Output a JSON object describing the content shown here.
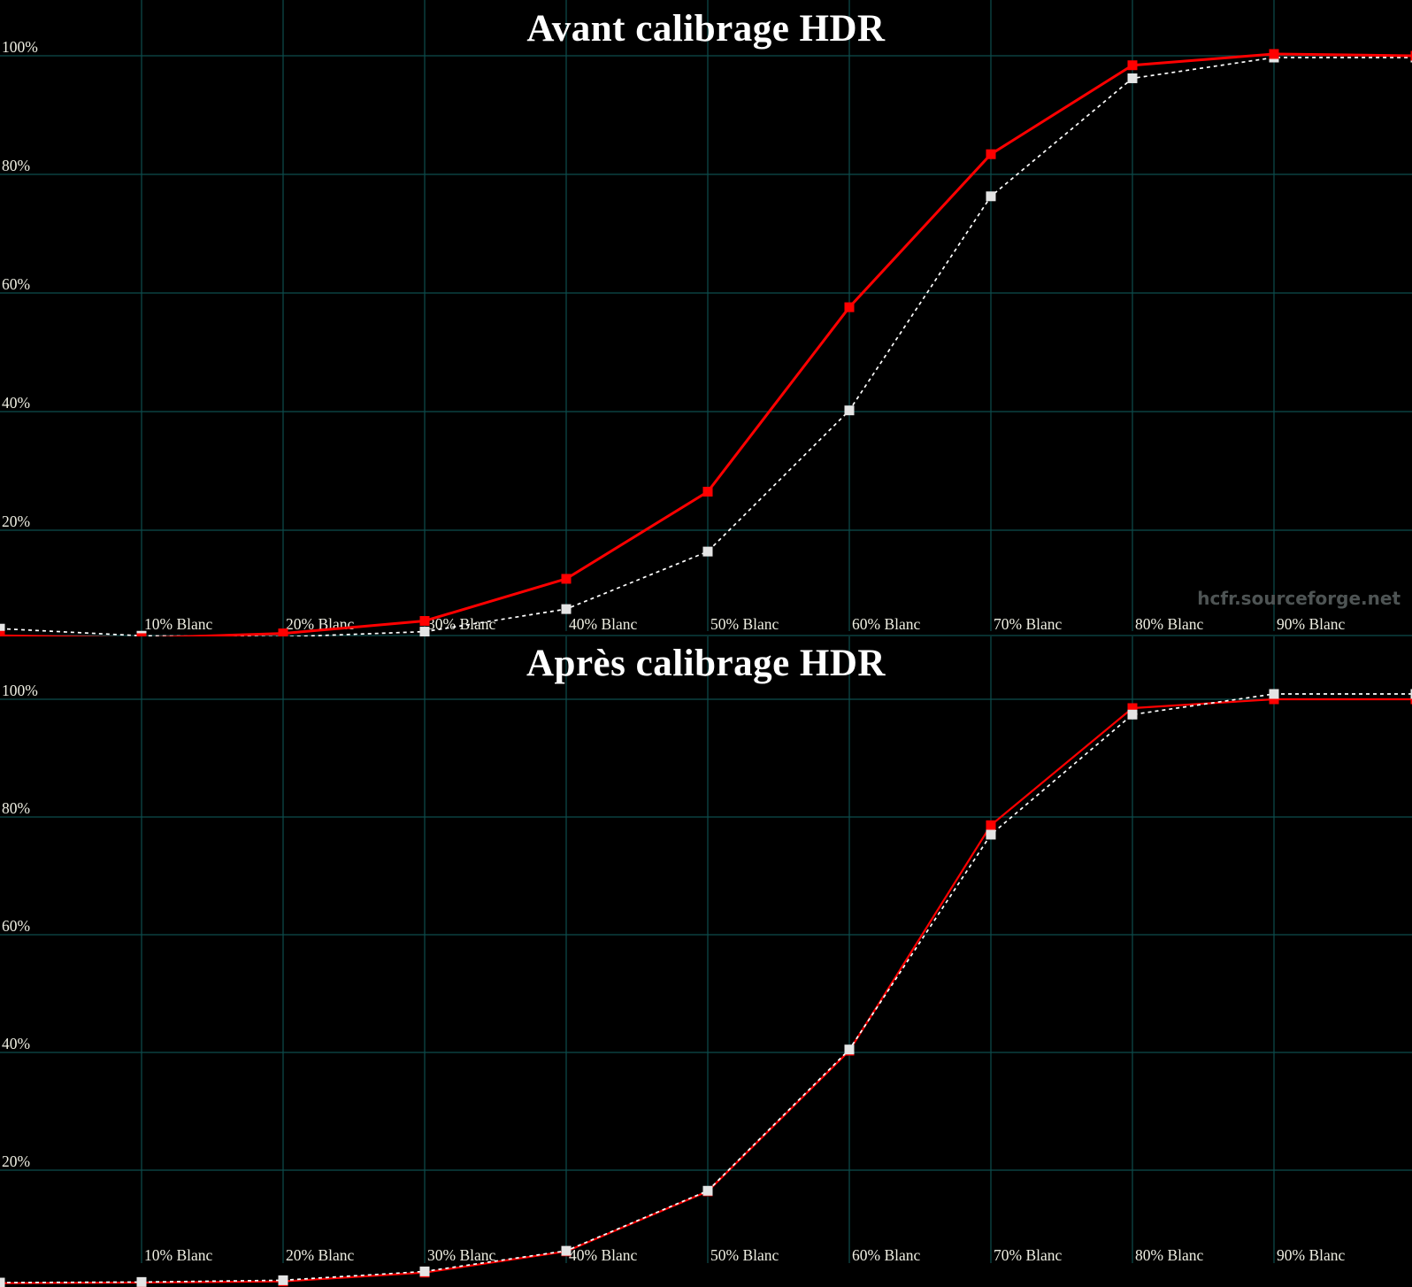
{
  "page": {
    "background": "#000000"
  },
  "watermark": {
    "text": "hcfr.sourceforge.net",
    "color": "#4e5454"
  },
  "colors": {
    "background": "#000000",
    "grid": "#0d4d4d",
    "measured_red": "#ff0000",
    "reference_white": "#ffffff",
    "reference_marker": "#e4e4e4",
    "axis_text": "#eeeee2",
    "title_text": "#ffffff"
  },
  "chart_data": [
    {
      "type": "line",
      "title": "Avant calibrage HDR",
      "grid": true,
      "legend": "none",
      "x_axis": {
        "range": [
          0,
          100
        ],
        "tick_labels": [
          "10% Blanc",
          "20% Blanc",
          "30% Blanc",
          "40% Blanc",
          "50% Blanc",
          "60% Blanc",
          "70% Blanc",
          "80% Blanc",
          "90% Blanc"
        ],
        "tick_values": [
          10,
          20,
          30,
          40,
          50,
          60,
          70,
          80,
          90
        ]
      },
      "y_axis": {
        "range": [
          0,
          100
        ],
        "tick_labels": [
          "100%",
          "80%",
          "60%",
          "40%",
          "20%"
        ],
        "tick_values": [
          100,
          80,
          60,
          40,
          20
        ]
      },
      "x": [
        0,
        10,
        20,
        30,
        40,
        50,
        60,
        70,
        80,
        90,
        100
      ],
      "series": [
        {
          "name": "reference-white-dashed",
          "color": "#ffffff",
          "marker_color": "#e4e4e4",
          "style": "dashed",
          "values": [
            3.4,
            2.2,
            2.0,
            2.9,
            6.7,
            16.4,
            40.2,
            76.3,
            96.2,
            99.7,
            99.7
          ]
        },
        {
          "name": "measured-red-solid",
          "color": "#ff0000",
          "marker_color": "#ff0000",
          "style": "solid",
          "values": [
            2.2,
            1.8,
            2.6,
            4.7,
            11.8,
            26.5,
            57.6,
            83.4,
            98.4,
            100.3,
            100.0
          ]
        }
      ]
    },
    {
      "type": "line",
      "title": "Après calibrage HDR",
      "grid": true,
      "legend": "none",
      "x_axis": {
        "range": [
          0,
          100
        ],
        "tick_labels": [
          "10% Blanc",
          "20% Blanc",
          "30% Blanc",
          "40% Blanc",
          "50% Blanc",
          "60% Blanc",
          "70% Blanc",
          "80% Blanc",
          "90% Blanc"
        ],
        "tick_values": [
          10,
          20,
          30,
          40,
          50,
          60,
          70,
          80,
          90
        ]
      },
      "y_axis": {
        "range": [
          0,
          100
        ],
        "tick_labels": [
          "100%",
          "80%",
          "60%",
          "40%",
          "20%"
        ],
        "tick_values": [
          100,
          80,
          60,
          40,
          20
        ]
      },
      "x": [
        0,
        10,
        20,
        30,
        40,
        50,
        60,
        70,
        80,
        90,
        100
      ],
      "series": [
        {
          "name": "measured-red-solid",
          "color": "#ff0000",
          "marker_color": "#ff0000",
          "style": "solid",
          "values": [
            0.8,
            0.9,
            1.1,
            2.6,
            6.2,
            16.4,
            40.3,
            78.6,
            98.5,
            100.0,
            100.0
          ]
        },
        {
          "name": "reference-white-dashed",
          "color": "#ffffff",
          "marker_color": "#e4e4e4",
          "style": "dashed",
          "values": [
            0.9,
            1.0,
            1.3,
            2.8,
            6.3,
            16.5,
            40.5,
            77.0,
            97.4,
            100.9,
            100.9
          ]
        }
      ]
    }
  ]
}
